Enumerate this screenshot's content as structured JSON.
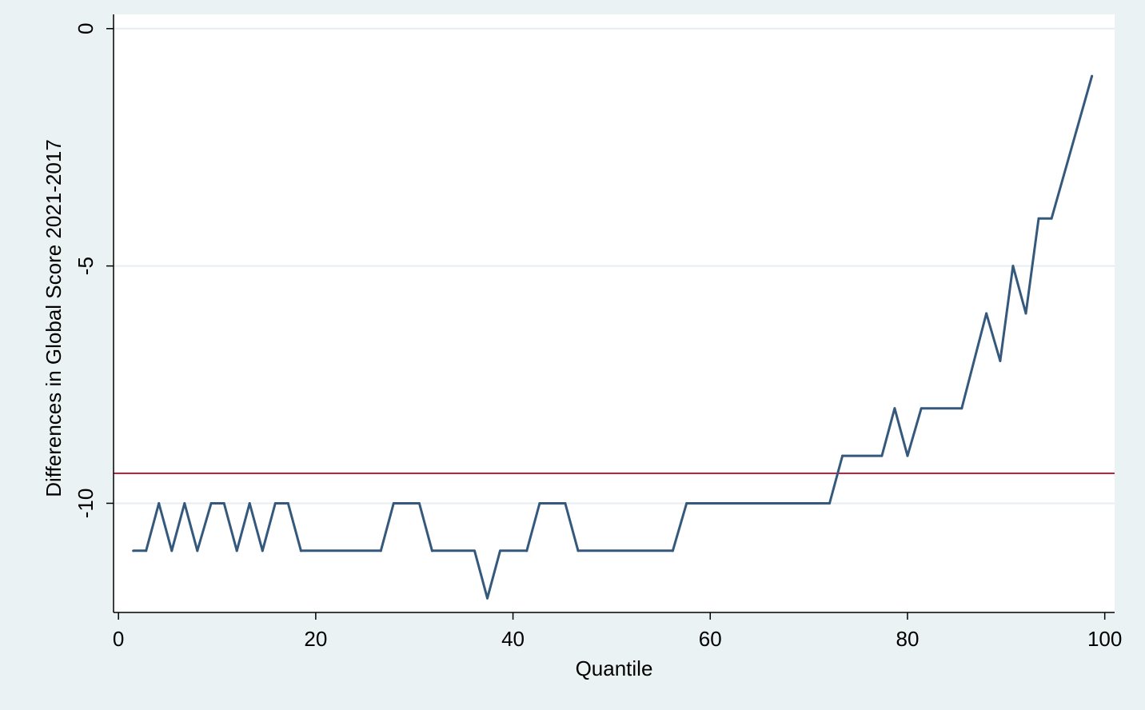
{
  "chart_data": {
    "type": "line",
    "xlabel": "Quantile",
    "ylabel": "Differences in Global Score 2021-2017",
    "xlim": [
      -0.5,
      101
    ],
    "ylim": [
      -12.3,
      0.3
    ],
    "x_ticks": [
      0,
      20,
      40,
      60,
      80,
      100
    ],
    "x_tick_labels": [
      "0",
      "20",
      "40",
      "60",
      "80",
      "100"
    ],
    "y_ticks": [
      0,
      -5,
      -10
    ],
    "y_tick_labels": [
      "0",
      "-5",
      "-10"
    ],
    "grid": "horizontal",
    "series": [
      {
        "color": "#34597d",
        "x": [
          1.5,
          2.8,
          4.1,
          5.4,
          6.7,
          8.0,
          9.4,
          10.7,
          12.0,
          13.3,
          14.6,
          15.9,
          17.2,
          18.5,
          26.6,
          27.9,
          30.5,
          31.8,
          36.1,
          37.4,
          38.7,
          41.4,
          42.7,
          45.3,
          46.6,
          56.2,
          57.6,
          72.1,
          73.4,
          77.4,
          78.7,
          80.0,
          81.4,
          85.5,
          88.0,
          89.4,
          90.7,
          92.0,
          93.3,
          94.6,
          98.7
        ],
        "y": [
          -11,
          -11,
          -10,
          -11,
          -10,
          -11,
          -10,
          -10,
          -11,
          -10,
          -11,
          -10,
          -10,
          -11,
          -11,
          -10,
          -10,
          -11,
          -11,
          -12,
          -11,
          -11,
          -10,
          -10,
          -11,
          -11,
          -10,
          -10,
          -9,
          -9,
          -8,
          -9,
          -8,
          -8,
          -6,
          -7,
          -5,
          -6,
          -4,
          -4,
          -1
        ]
      }
    ],
    "reference_line": {
      "y": -9.37,
      "color": "#c8203c"
    }
  },
  "colors": {
    "page_background": "#eaf2f3",
    "plot_background": "#ffffff",
    "gridline": "#e6eef0",
    "axis": "#000000"
  }
}
